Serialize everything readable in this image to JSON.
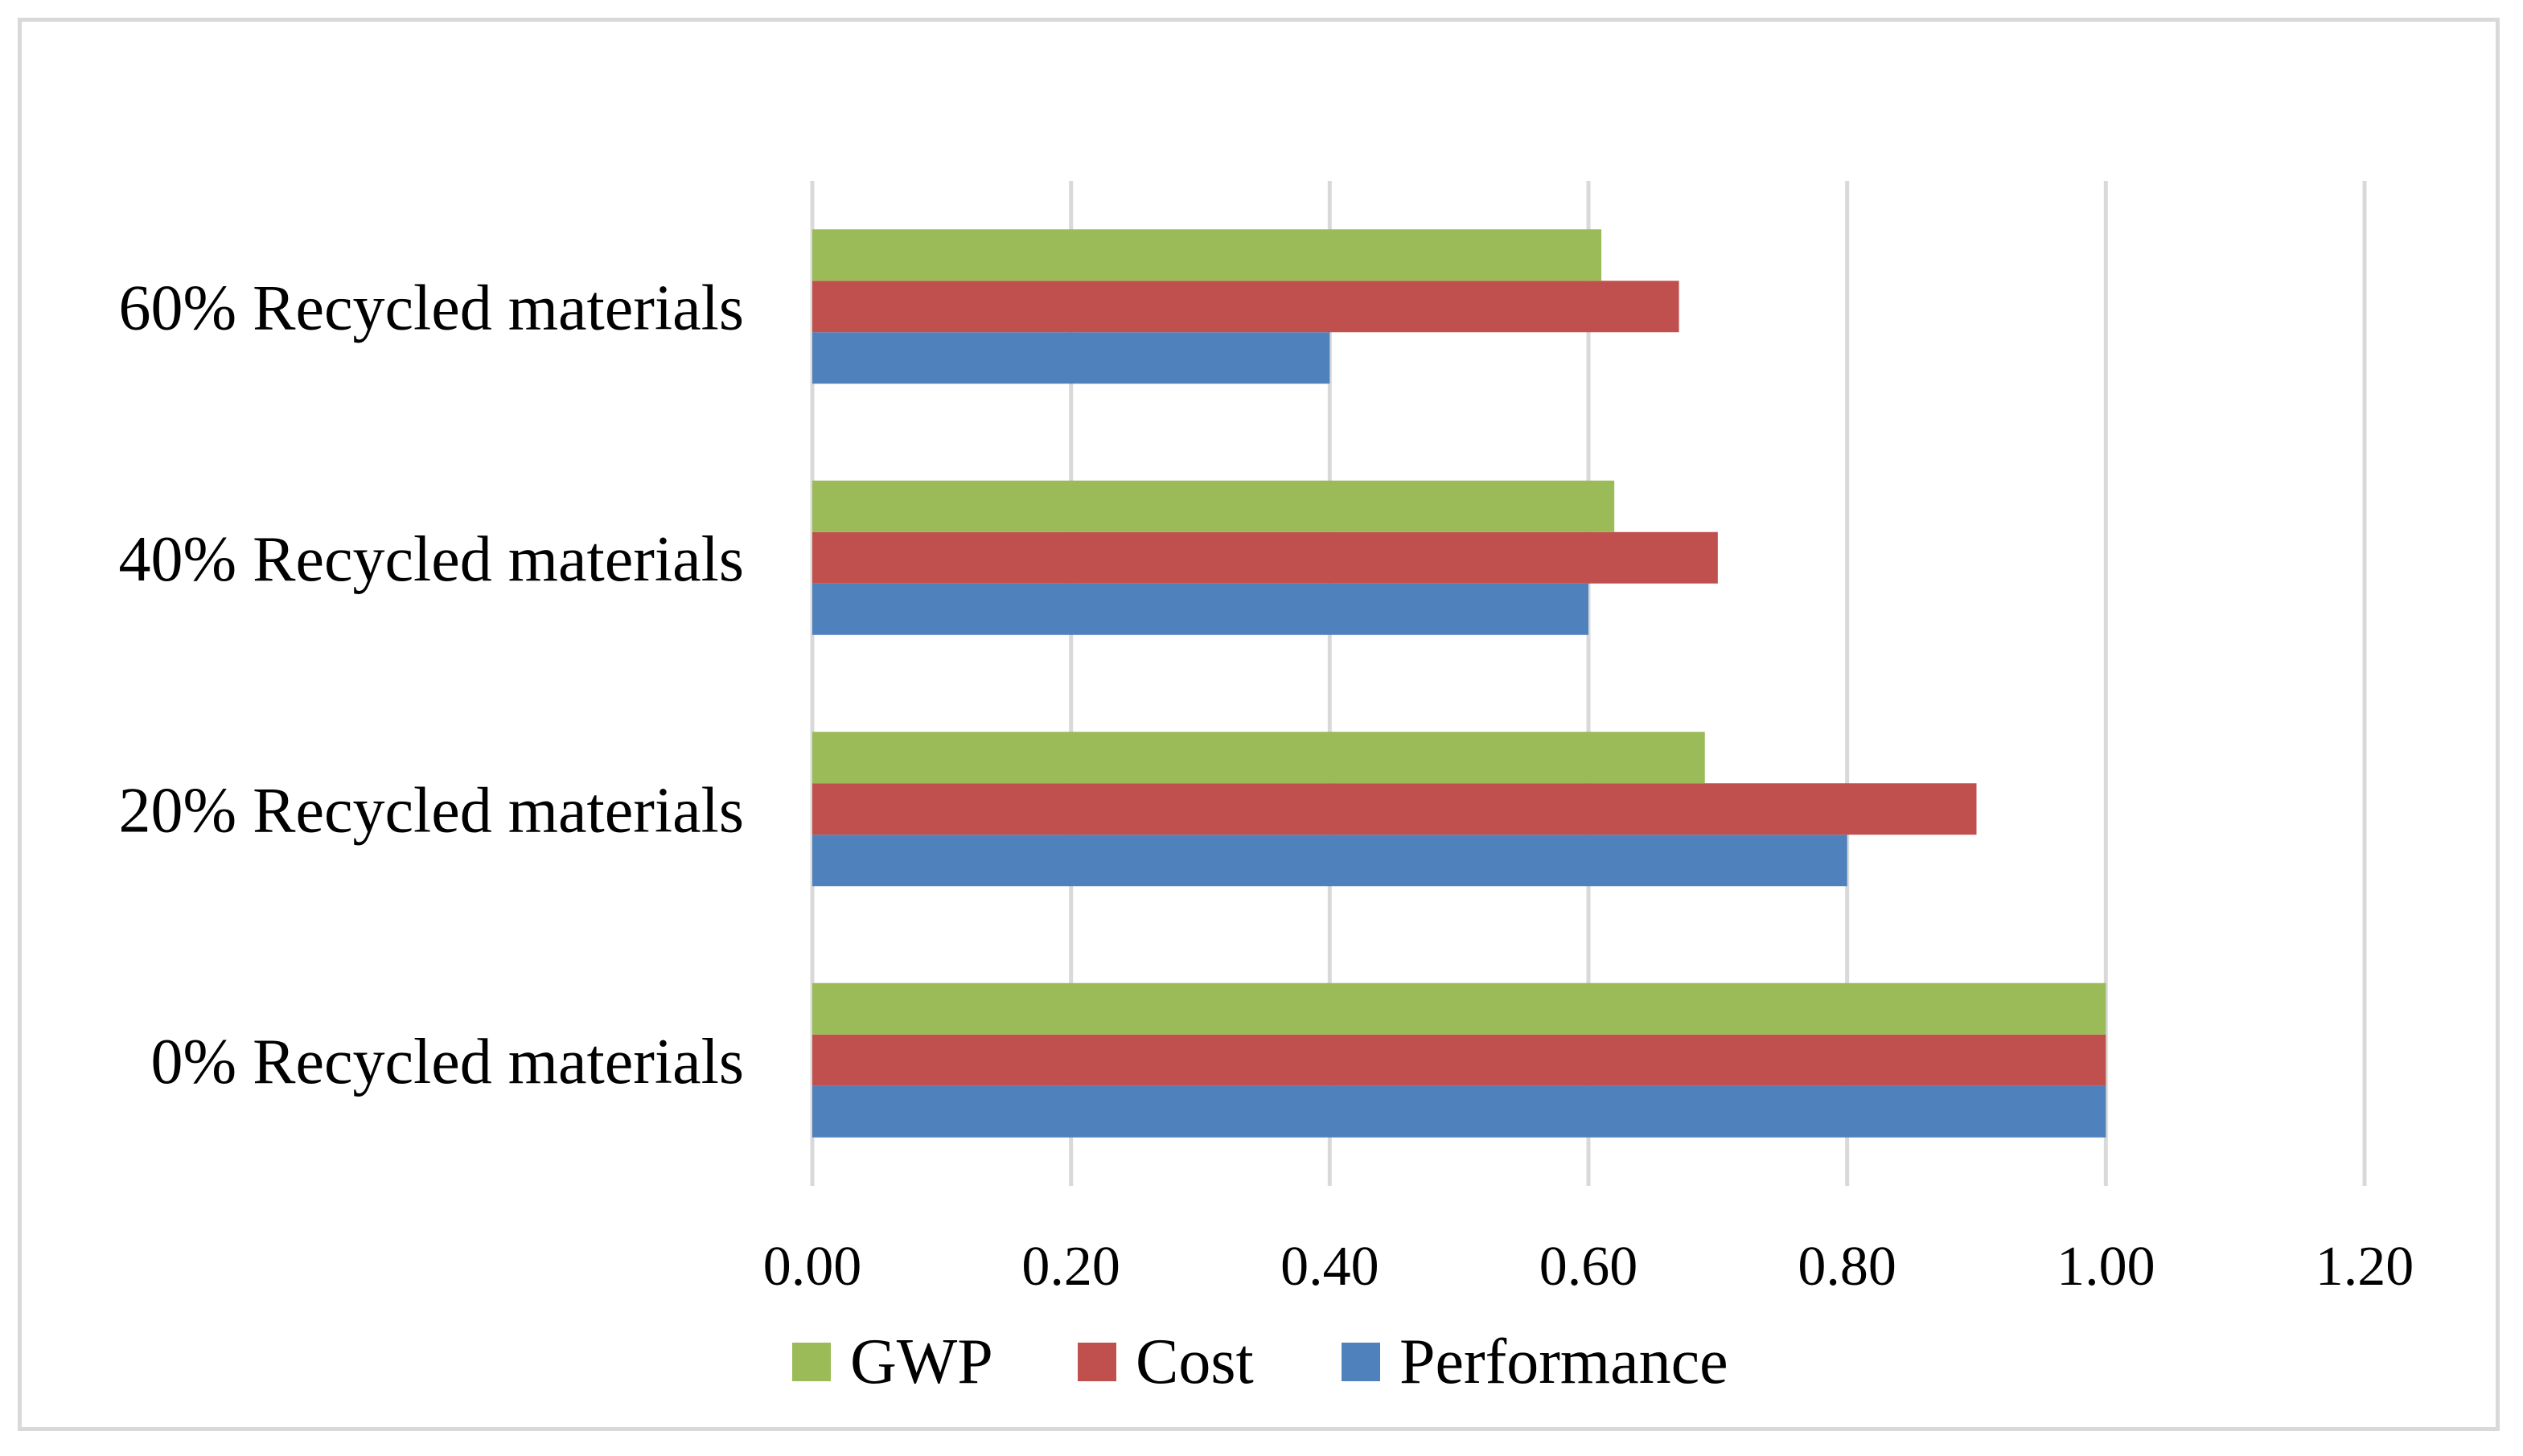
{
  "chart_data": {
    "type": "bar",
    "orientation": "horizontal",
    "title": "",
    "xlabel": "",
    "ylabel": "",
    "categories": [
      "0% Recycled materials",
      "20% Recycled materials",
      "40% Recycled materials",
      "60% Recycled materials"
    ],
    "series": [
      {
        "name": "Performance",
        "color": "#4f81bd",
        "values": [
          1.0,
          0.8,
          0.6,
          0.4
        ]
      },
      {
        "name": "Cost",
        "color": "#c0504d",
        "values": [
          1.0,
          0.9,
          0.7,
          0.67
        ]
      },
      {
        "name": "GWP",
        "color": "#9bbb59",
        "values": [
          1.0,
          0.69,
          0.62,
          0.61
        ]
      }
    ],
    "xlim": [
      0,
      1.2
    ],
    "xticks": [
      0,
      0.2,
      0.4,
      0.6,
      0.8,
      1.0,
      1.2
    ],
    "xtick_labels": [
      "0.00",
      "0.20",
      "0.40",
      "0.60",
      "0.80",
      "1.00",
      "1.20"
    ],
    "grid": true,
    "legend": {
      "position": "bottom",
      "order": [
        "GWP",
        "Cost",
        "Performance"
      ]
    }
  }
}
